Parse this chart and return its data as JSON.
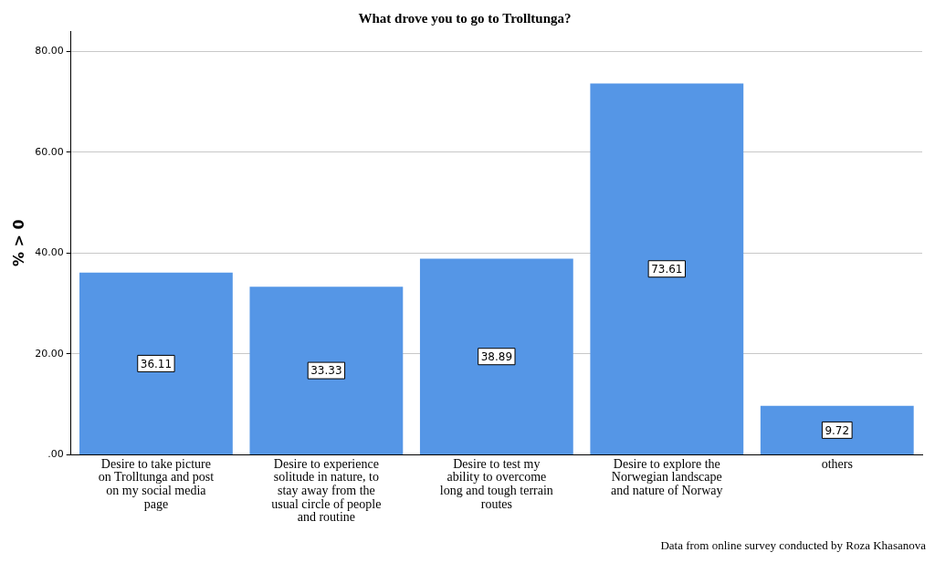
{
  "chart_data": {
    "type": "bar",
    "title": "What drove you to go to Trolltunga?",
    "ylabel": "% > 0",
    "categories": [
      "Desire to take picture on Trolltunga and post on my social media page",
      "Desire to experience solitude in nature, to stay away from the usual circle of people and routine",
      "Desire to test my ability to overcome long and tough terrain routes",
      "Desire to explore the Norwegian landscape and nature of Norway",
      "others"
    ],
    "values": [
      36.11,
      33.33,
      38.89,
      73.61,
      9.72
    ],
    "color": "#5596e6",
    "ylim": [
      0,
      84
    ],
    "yticks": [
      {
        "value": 0,
        "label": ".00"
      },
      {
        "value": 20,
        "label": "20.00"
      },
      {
        "value": 40,
        "label": "40.00"
      },
      {
        "value": 60,
        "label": "60.00"
      },
      {
        "value": 80,
        "label": "80.00"
      }
    ],
    "grid": "y",
    "legend": false,
    "data_labels": true,
    "annotations": [
      "Data from online survey conducted by Roza Khasanova"
    ]
  }
}
